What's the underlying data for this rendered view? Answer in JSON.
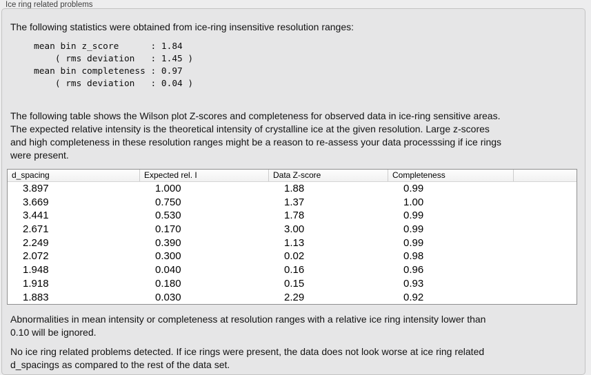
{
  "panel": {
    "title": "Ice ring related problems"
  },
  "intro": "The following statistics were obtained from ice-ring insensitive resolution ranges:",
  "stats_block": "mean bin z_score      : 1.84\n    ( rms deviation   : 1.45 )\nmean bin completeness : 0.97\n    ( rms deviation   : 0.04 )",
  "stats": {
    "mean_bin_z_score": "1.84",
    "z_score_rms_deviation": "1.45",
    "mean_bin_completeness": "0.97",
    "completeness_rms_deviation": "0.04"
  },
  "description_lines": [
    "The following table shows the Wilson plot Z-scores and completeness for observed data in ice-ring sensitive areas.",
    "The expected relative intensity is the theoretical intensity of crystalline ice at the given resolution. Large z-scores",
    "and high completeness in these resolution ranges might be a reason to re-assess your data processsing if ice rings",
    "were present."
  ],
  "table": {
    "headers": [
      "d_spacing",
      "Expected rel. I",
      "Data Z-score",
      "Completeness",
      ""
    ],
    "rows": [
      [
        "3.897",
        "1.000",
        "1.88",
        "0.99"
      ],
      [
        "3.669",
        "0.750",
        "1.37",
        "1.00"
      ],
      [
        "3.441",
        "0.530",
        "1.78",
        "0.99"
      ],
      [
        "2.671",
        "0.170",
        "3.00",
        "0.99"
      ],
      [
        "2.249",
        "0.390",
        "1.13",
        "0.99"
      ],
      [
        "2.072",
        "0.300",
        "0.02",
        "0.98"
      ],
      [
        "1.948",
        "0.040",
        "0.16",
        "0.96"
      ],
      [
        "1.918",
        "0.180",
        "0.15",
        "0.93"
      ],
      [
        "1.883",
        "0.030",
        "2.29",
        "0.92"
      ]
    ]
  },
  "note_lines": [
    "Abnormalities in mean intensity or completeness at resolution ranges with a relative ice ring intensity lower than",
    "0.10 will be ignored."
  ],
  "conclusion_lines": [
    "No ice ring related problems detected. If ice rings were present, the data does not look worse at ice ring related",
    "d_spacings as compared to the rest of the data set."
  ],
  "colors": {
    "panel_background": "#ededee",
    "groupbox_background": "#e6e6e7",
    "groupbox_border": "#c2c2c2",
    "table_border": "#8f8f8f",
    "table_background": "#ffffff"
  }
}
